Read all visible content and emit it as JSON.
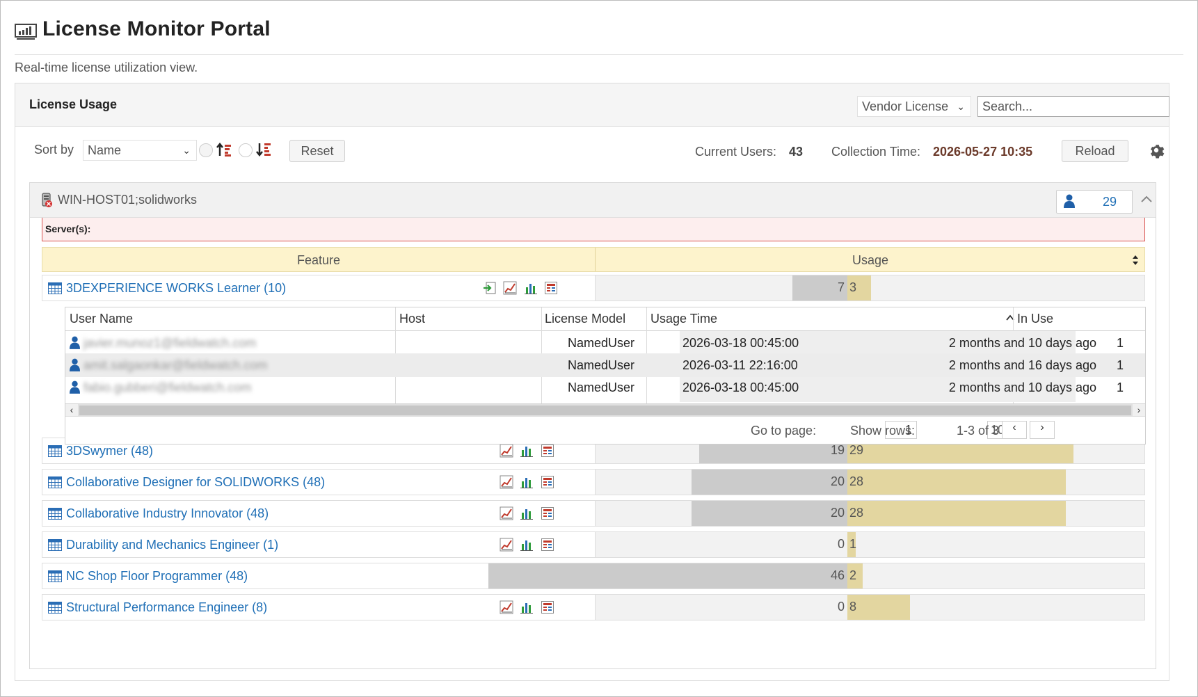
{
  "app": {
    "title": "License Monitor Portal",
    "subtitle": "Real-time license utilization view.",
    "icon": "monitor-chart-icon"
  },
  "panel": {
    "title": "License Usage",
    "vendor_select": "Vendor License",
    "search_placeholder": "Search..."
  },
  "toolbar": {
    "sort_by_label": "Sort by",
    "sort_by_value": "Name",
    "reset_label": "Reset",
    "current_users_label": "Current Users:",
    "current_users_value": "43",
    "collection_time_label": "Collection Time:",
    "collection_time_value": "2026-05-27 10:35",
    "reload_label": "Reload"
  },
  "group": {
    "title": "WIN-HOST01;solidworks",
    "user_count": "29",
    "servers_label": "Server(s):"
  },
  "table": {
    "col_feature": "Feature",
    "col_usage": "Usage"
  },
  "features": [
    {
      "name": "3DEXPERIENCE WORKS Learner (10)",
      "used": "7",
      "free": "3",
      "used_value": 7,
      "free_value": 3
    },
    {
      "name": "3DSwymer (48)",
      "used": "19",
      "free": "29",
      "used_value": 19,
      "free_value": 29
    },
    {
      "name": "Collaborative Designer for SOLIDWORKS (48)",
      "used": "20",
      "free": "28",
      "used_value": 20,
      "free_value": 28
    },
    {
      "name": "Collaborative Industry Innovator (48)",
      "used": "20",
      "free": "28",
      "used_value": 20,
      "free_value": 28
    },
    {
      "name": "Durability and Mechanics Engineer (1)",
      "used": "0",
      "free": "1",
      "used_value": 0,
      "free_value": 1
    },
    {
      "name": "NC Shop Floor Programmer (48)",
      "used": "46",
      "free": "2",
      "used_value": 46,
      "free_value": 2
    },
    {
      "name": "Structural Performance Engineer (8)",
      "used": "0",
      "free": "8",
      "used_value": 0,
      "free_value": 8
    }
  ],
  "detail": {
    "col_user": "User Name",
    "col_host": "Host",
    "col_model": "License Model",
    "col_time": "Usage Time",
    "col_inuse": "In Use",
    "rows": [
      {
        "user": "javier.munoz1@fieldwatch.com",
        "host": "",
        "model": "NamedUser",
        "time": "2026-03-18 00:45:00",
        "relative": "2 months and 10 days ago",
        "in_use": "1"
      },
      {
        "user": "amit.salgaonkar@fieldwatch.com",
        "host": "",
        "model": "NamedUser",
        "time": "2026-03-11 22:16:00",
        "relative": "2 months and 16 days ago",
        "in_use": "1"
      },
      {
        "user": "fabio.gubberi@fieldwatch.com",
        "host": "",
        "model": "NamedUser",
        "time": "2026-03-18 00:45:00",
        "relative": "2 months and 10 days ago",
        "in_use": "1"
      }
    ],
    "pager": {
      "goto_label": "Go to page:",
      "page": "1",
      "show_rows_label": "Show rows:",
      "rows_value": "10",
      "range": "1-3 of 3"
    }
  },
  "colors": {
    "link": "#1f6fb6",
    "used_bar": "#cbcbcb",
    "free_bar": "#e3d6a0",
    "header_bg": "#fdf3cc",
    "server_alert": "#d9534f"
  }
}
